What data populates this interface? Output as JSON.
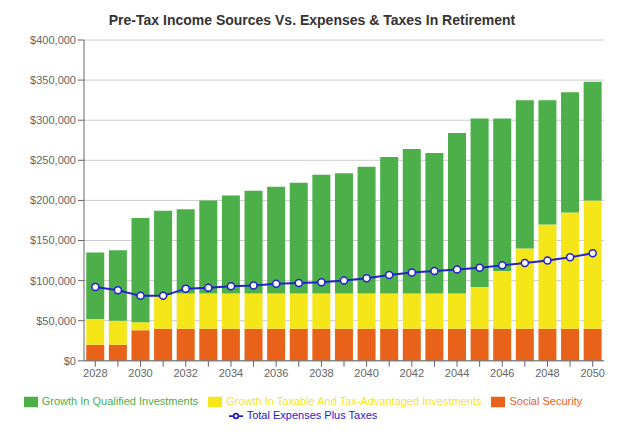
{
  "chart_data": {
    "type": "bar",
    "title": "Pre-Tax Income Sources Vs. Expenses & Taxes In Retirement",
    "categories": [
      "2028",
      null,
      "2030",
      null,
      "2032",
      null,
      "2034",
      null,
      "2036",
      null,
      "2038",
      null,
      "2040",
      null,
      "2042",
      null,
      "2044",
      null,
      "2046",
      null,
      "2048",
      null,
      "2050"
    ],
    "series": [
      {
        "name": "Social Security",
        "color": "#E8621A",
        "values": [
          20000,
          20000,
          38000,
          40000,
          40000,
          40000,
          40000,
          40000,
          40000,
          40000,
          40000,
          40000,
          40000,
          40000,
          40000,
          40000,
          40000,
          40000,
          40000,
          40000,
          40000,
          40000,
          40000
        ]
      },
      {
        "name": "Growth In Taxable And Tax-Advantaged Investments",
        "color": "#F5E61A",
        "values": [
          32000,
          30000,
          10000,
          42000,
          44000,
          44000,
          44000,
          44000,
          44000,
          44000,
          44000,
          44000,
          44000,
          44000,
          44000,
          44000,
          44000,
          52000,
          72000,
          100000,
          130000,
          145000,
          160000
        ]
      },
      {
        "name": "Growth In Qualified Investments",
        "color": "#4DAF4A",
        "values": [
          83000,
          88000,
          130000,
          105000,
          105000,
          116000,
          122000,
          128000,
          133000,
          138000,
          148000,
          150000,
          158000,
          170000,
          180000,
          175000,
          200000,
          210000,
          190000,
          185000,
          155000,
          150000,
          148000
        ]
      },
      {
        "name": "Total Expenses Plus Taxes",
        "type": "line",
        "color": "#2222CC",
        "marker": "circle",
        "values": [
          92000,
          88000,
          81000,
          81000,
          90000,
          91000,
          93000,
          94000,
          96000,
          97000,
          98000,
          100000,
          103000,
          107000,
          110000,
          112000,
          114000,
          116000,
          119000,
          122000,
          125000,
          129000,
          134000
        ]
      }
    ],
    "stacked": true,
    "ylim": [
      0,
      400000
    ],
    "yticks": [
      {
        "value": 0,
        "label": "$0"
      },
      {
        "value": 50000,
        "label": "$50,000"
      },
      {
        "value": 100000,
        "label": "$100,000"
      },
      {
        "value": 150000,
        "label": "$150,000"
      },
      {
        "value": 200000,
        "label": "$200,000"
      },
      {
        "value": 250000,
        "label": "$250,000"
      },
      {
        "value": 300000,
        "label": "$300,000"
      },
      {
        "value": 350000,
        "label": "$350,000"
      },
      {
        "value": 400000,
        "label": "$400,000"
      }
    ],
    "grid": true,
    "legend": "bottom"
  }
}
